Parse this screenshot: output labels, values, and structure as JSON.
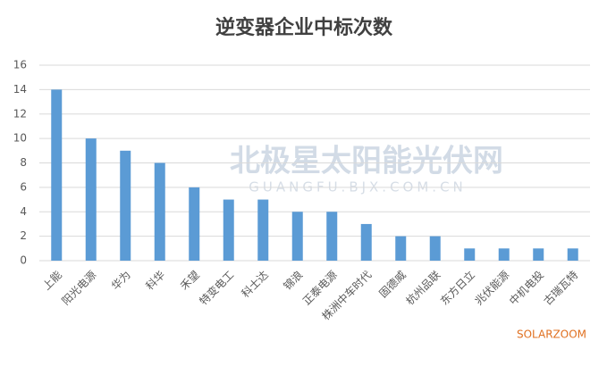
{
  "chart_data": {
    "type": "bar",
    "title": "逆变器企业中标次数",
    "categories": [
      "上能",
      "阳光电源",
      "华为",
      "科华",
      "禾望",
      "特变电工",
      "科士达",
      "锦浪",
      "正泰电源",
      "株洲中车时代",
      "固德威",
      "杭州品联",
      "东方日立",
      "兆伏能源",
      "中机电投",
      "古瑞瓦特"
    ],
    "values": [
      14,
      10,
      9,
      8,
      6,
      5,
      5,
      4,
      4,
      3,
      2,
      2,
      1,
      1,
      1,
      1
    ],
    "color": "#5b9bd5",
    "ylim": [
      0,
      16
    ],
    "yticks": [
      0,
      2,
      4,
      6,
      8,
      10,
      12,
      14,
      16
    ],
    "grid": true,
    "watermark": [
      "北极星太阳能光伏网",
      "GUANGFU.BJX.COM.CN"
    ],
    "source": "SOLARZOOM"
  }
}
